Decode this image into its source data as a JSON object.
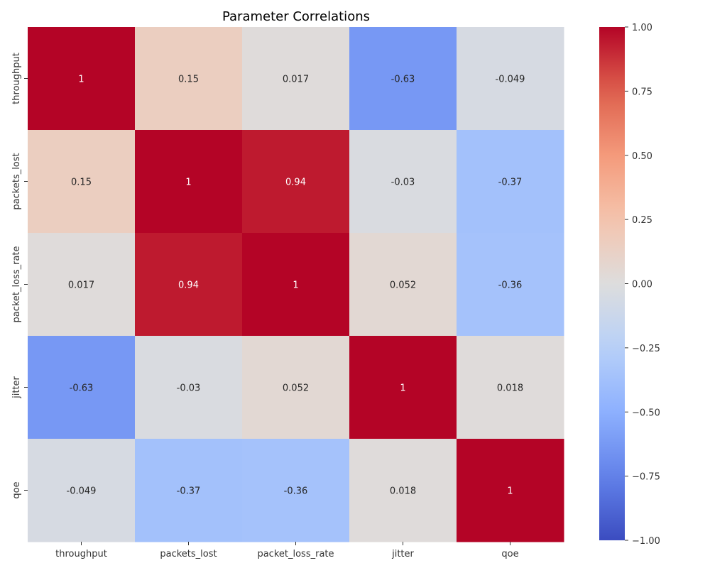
{
  "chart_data": {
    "type": "heatmap",
    "title": "Parameter Correlations",
    "rows": [
      "throughput",
      "packets_lost",
      "packet_loss_rate",
      "jitter",
      "qoe"
    ],
    "columns": [
      "throughput",
      "packets_lost",
      "packet_loss_rate",
      "jitter",
      "qoe"
    ],
    "values": [
      [
        1,
        0.15,
        0.017,
        -0.63,
        -0.049
      ],
      [
        0.15,
        1,
        0.94,
        -0.03,
        -0.37
      ],
      [
        0.017,
        0.94,
        1,
        0.052,
        -0.36
      ],
      [
        -0.63,
        -0.03,
        0.052,
        1,
        0.018
      ],
      [
        -0.049,
        -0.37,
        -0.36,
        0.018,
        1
      ]
    ],
    "annotations": [
      [
        "1",
        "0.15",
        "0.017",
        "-0.63",
        "-0.049"
      ],
      [
        "0.15",
        "1",
        "0.94",
        "-0.03",
        "-0.37"
      ],
      [
        "0.017",
        "0.94",
        "1",
        "0.052",
        "-0.36"
      ],
      [
        "-0.63",
        "-0.03",
        "0.052",
        "1",
        "0.018"
      ],
      [
        "-0.049",
        "-0.37",
        "-0.36",
        "0.018",
        "1"
      ]
    ],
    "colormap": "coolwarm",
    "vmin": -1,
    "vmax": 1,
    "colorbar_ticks": [
      1.0,
      0.75,
      0.5,
      0.25,
      0.0,
      -0.25,
      -0.5,
      -0.75,
      -1.0
    ],
    "colorbar_tick_labels": [
      "1.00",
      "0.75",
      "0.50",
      "0.25",
      "0.00",
      "−0.25",
      "−0.50",
      "−0.75",
      "−1.00"
    ],
    "grid": false
  }
}
